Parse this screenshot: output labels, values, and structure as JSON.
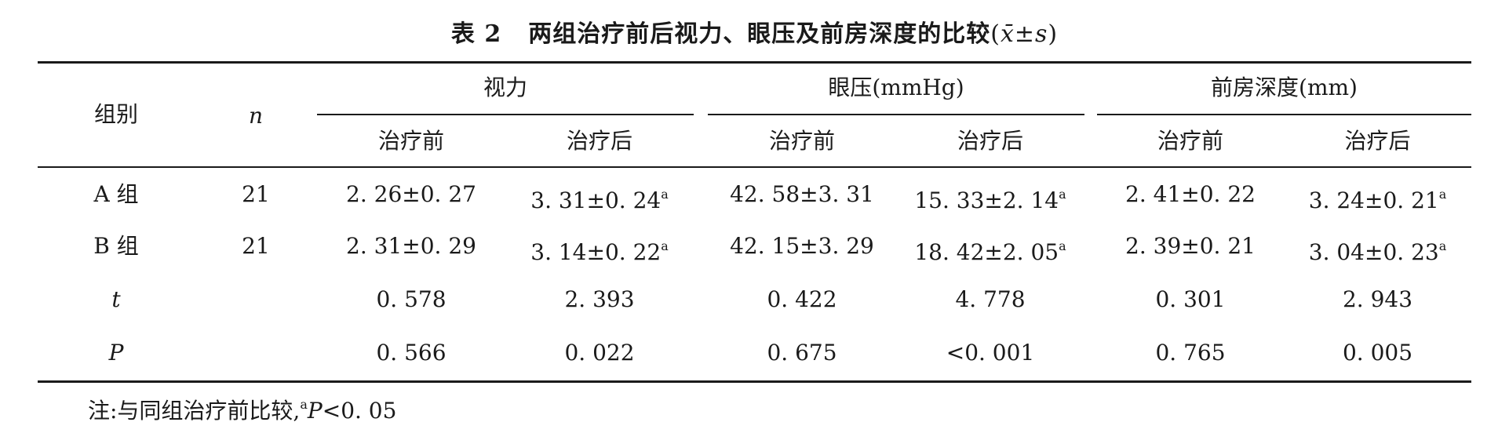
{
  "caption": {
    "number": "表 2",
    "title": "两组治疗前后视力、眼压及前房深度的比较",
    "stat_open": "(",
    "stat": "x̄±s",
    "stat_close": ")"
  },
  "header": {
    "group": "组别",
    "n": "n",
    "vision": "视力",
    "iop": "眼压(mmHg)",
    "acd": "前房深度(mm)",
    "before": "治疗前",
    "after": "治疗后"
  },
  "rows": [
    {
      "label": "A 组",
      "n": "21",
      "vision_before": "2. 26±0. 27",
      "vision_after": "3. 31±0. 24",
      "vision_after_mark": "a",
      "iop_before": "42. 58±3. 31",
      "iop_after": "15. 33±2. 14",
      "iop_after_mark": "a",
      "acd_before": "2. 41±0. 22",
      "acd_after": "3. 24±0. 21",
      "acd_after_mark": "a"
    },
    {
      "label": "B 组",
      "n": "21",
      "vision_before": "2. 31±0. 29",
      "vision_after": "3. 14±0. 22",
      "vision_after_mark": "a",
      "iop_before": "42. 15±3. 29",
      "iop_after": "18. 42±2. 05",
      "iop_after_mark": "a",
      "acd_before": "2. 39±0. 21",
      "acd_after": "3. 04±0. 23",
      "acd_after_mark": "a"
    },
    {
      "label": "t",
      "n": "",
      "vision_before": "0. 578",
      "vision_after": "2. 393",
      "iop_before": "0. 422",
      "iop_after": "4. 778",
      "acd_before": "0. 301",
      "acd_after": "2. 943"
    },
    {
      "label": "P",
      "n": "",
      "vision_before": "0. 566",
      "vision_after": "0. 022",
      "iop_before": "0. 675",
      "iop_after": "<0. 001",
      "acd_before": "0. 765",
      "acd_after": "0. 005"
    }
  ],
  "note": {
    "prefix": "注:与同组治疗前比较,",
    "mark": "a",
    "stat": "P",
    "suffix": "<0. 05"
  }
}
